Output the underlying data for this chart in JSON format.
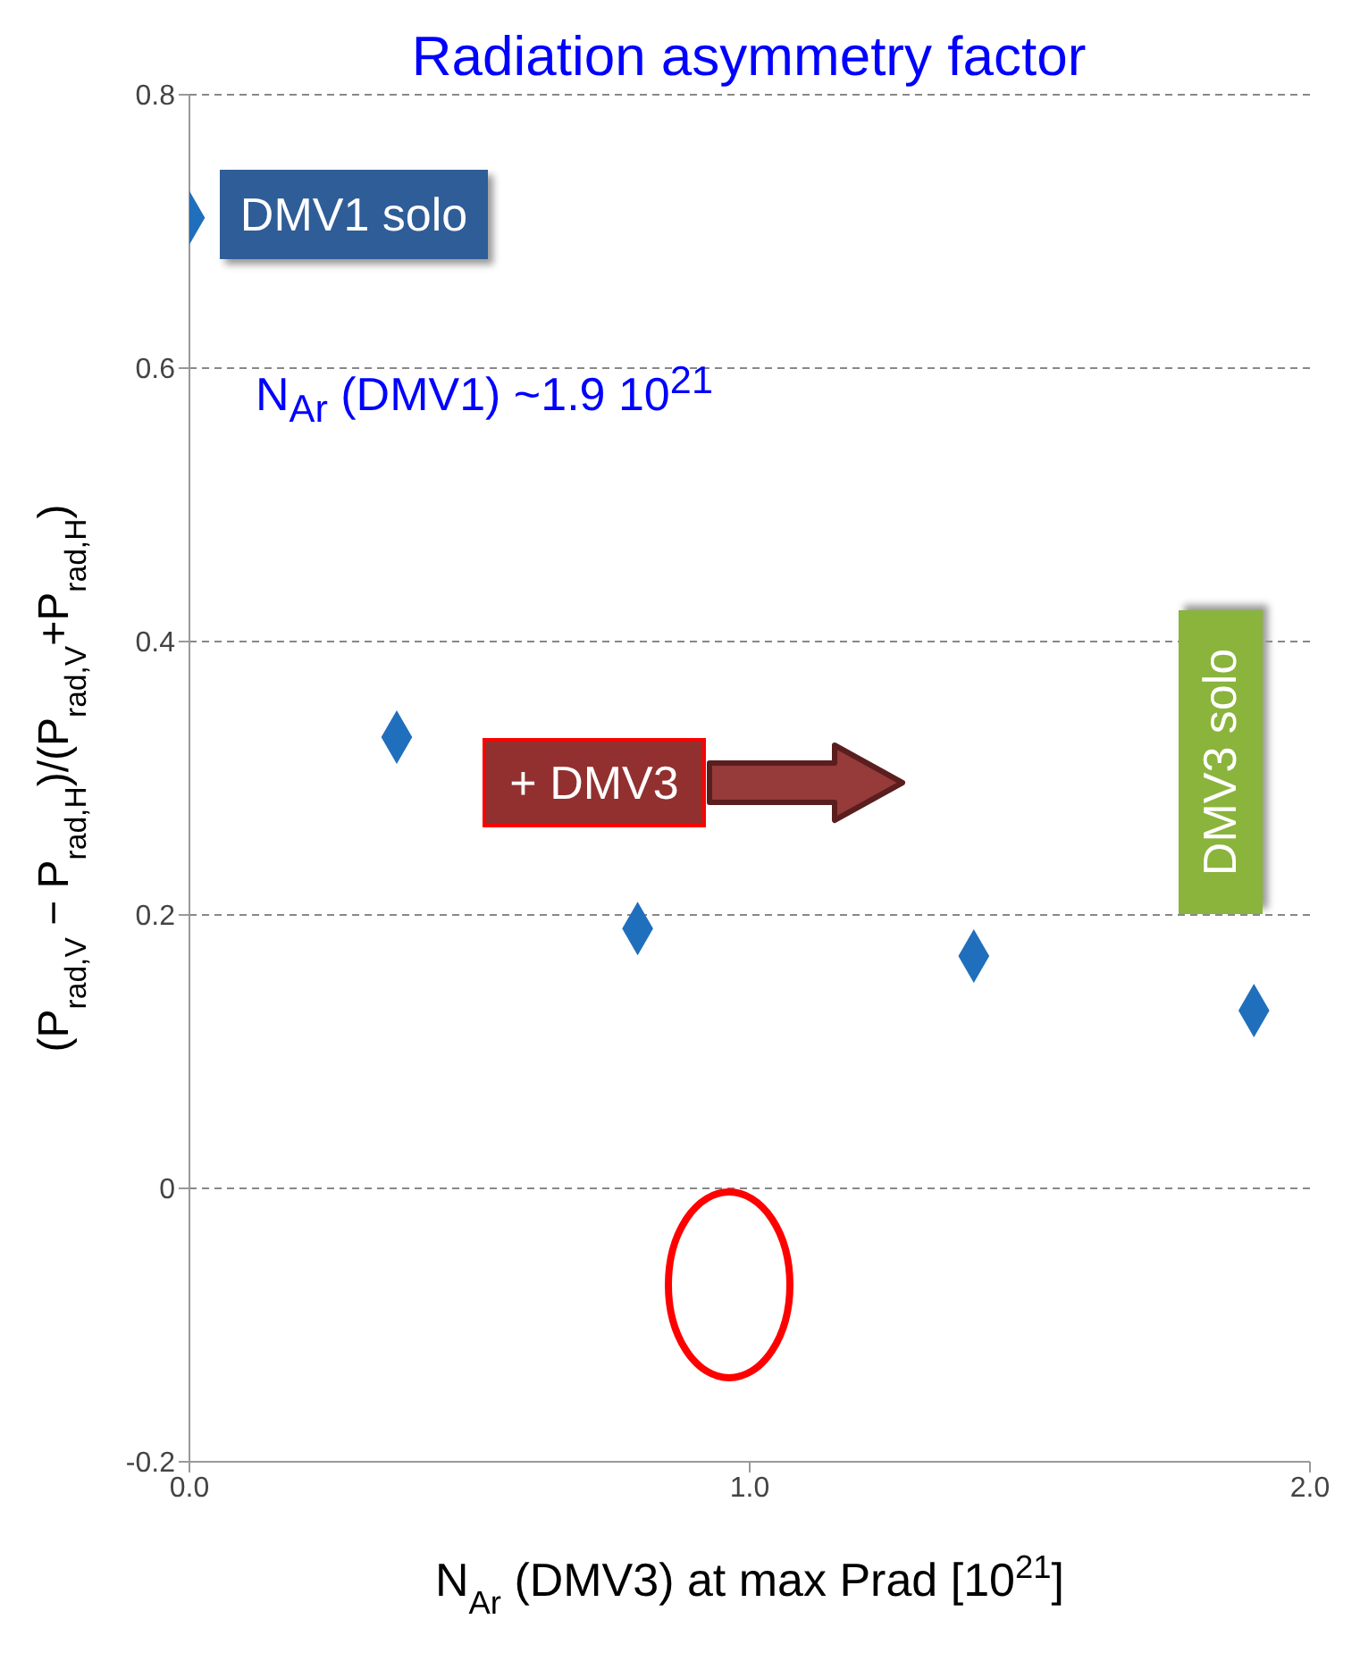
{
  "chart_data": {
    "type": "scatter",
    "title": "Radiation asymmetry factor",
    "xlabel": "N$_{Ar}$ (DMV3) at max Prad [10$^{21}$]",
    "ylabel": "(P$_{rad,V}$ − P$_{rad,H}$)/(P$_{rad,V}$+P$_{rad,H}$)",
    "x": [
      0.0,
      0.37,
      0.8,
      1.4,
      1.9
    ],
    "series": [
      {
        "color": "#1f6fbd",
        "values": [
          0.71,
          0.33,
          0.19,
          0.17,
          0.13
        ]
      }
    ],
    "xlim": [
      0,
      2
    ],
    "xticks": [
      {
        "value": 0,
        "label": "0.0"
      },
      {
        "value": 1,
        "label": "1.0"
      },
      {
        "value": 2,
        "label": "2.0"
      }
    ],
    "ylim": [
      -0.2,
      0.8
    ],
    "yticks": [
      -0.2,
      0,
      0.2,
      0.4,
      0.6,
      0.8
    ],
    "grid": "y",
    "marker": "diamond",
    "legend": false,
    "annotations": [
      "DMV1 solo",
      "N$_{Ar}$ (DMV1) ~1.9 10$^{21}$",
      "+ DMV3",
      "DMV3 solo"
    ]
  }
}
